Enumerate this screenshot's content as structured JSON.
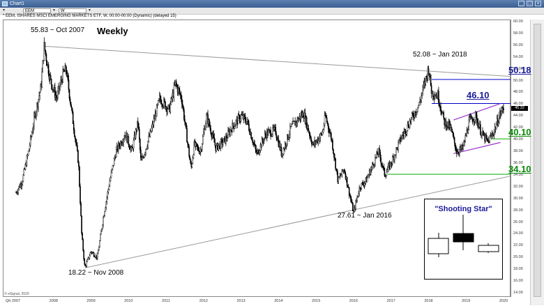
{
  "window": {
    "title": "Chart1",
    "buttons": {
      "minimize": "_",
      "maximize": "□",
      "close": "×"
    }
  },
  "toolbar": {
    "symbol": "EEM",
    "interval": "W"
  },
  "chart_header": "* EEM, ISHARES MSCI EMERGING MARKETS ETF, W, 00:00-00:00 (Dynamic) (delayed 15)",
  "timeframe_label": "Weekly",
  "price_tag": "45.32",
  "annotations": {
    "high_2007": "55.83 ~ Oct 2007",
    "low_2008": "18.22 ~ Nov 2008",
    "low_2016": "27.61 ~ Jan 2016",
    "high_2018": "52.08 ~ Jan 2018"
  },
  "levels": {
    "l5018": "50.18",
    "l4610": "46.10",
    "l4010": "40.10",
    "l3410": "34.10"
  },
  "inset": {
    "title": "\"Shooting Star\""
  },
  "footer": "© eSignal, 2020",
  "colors": {
    "blue_level": "#1c1c9a",
    "green_level": "#0a8a0a",
    "resistance_line": "#0000cc",
    "support_line": "#00aa00",
    "channel": "#9933cc",
    "trendline": "#999999",
    "candles": "#000000"
  },
  "chart_data": {
    "type": "candlestick",
    "title": "Weekly",
    "xlabel": "",
    "ylabel": "",
    "ylim": [
      14,
      60
    ],
    "y_ticks": [
      "60.00",
      "58.00",
      "56.00",
      "54.00",
      "52.00",
      "50.00",
      "48.00",
      "46.00",
      "44.00",
      "42.00",
      "40.00",
      "38.00",
      "36.00",
      "34.00",
      "32.00",
      "30.00",
      "28.00",
      "26.00",
      "24.00",
      "22.00",
      "20.00",
      "18.00",
      "16.00",
      "14.00"
    ],
    "x_ticks": [
      "2007",
      "2008",
      "2009",
      "2010",
      "2011",
      "2012",
      "2013",
      "2014",
      "2015",
      "2016",
      "2017",
      "2018",
      "2019",
      "2020"
    ],
    "x_start_label": "Qtr",
    "x_range": [
      "2007-01",
      "2020-02"
    ],
    "price_path": [
      [
        "2007-01",
        31.0
      ],
      [
        "2007-03",
        33.0
      ],
      [
        "2007-05",
        38.0
      ],
      [
        "2007-07",
        44.0
      ],
      [
        "2007-09",
        49.0
      ],
      [
        "2007-10",
        55.83
      ],
      [
        "2007-12",
        50.0
      ],
      [
        "2008-02",
        47.0
      ],
      [
        "2008-04",
        51.0
      ],
      [
        "2008-05",
        52.0
      ],
      [
        "2008-07",
        44.0
      ],
      [
        "2008-09",
        36.0
      ],
      [
        "2008-10",
        24.0
      ],
      [
        "2008-11",
        18.22
      ],
      [
        "2009-01",
        21.0
      ],
      [
        "2009-03",
        20.0
      ],
      [
        "2009-05",
        27.0
      ],
      [
        "2009-07",
        33.0
      ],
      [
        "2009-09",
        38.0
      ],
      [
        "2009-12",
        41.0
      ],
      [
        "2010-02",
        38.0
      ],
      [
        "2010-04",
        43.0
      ],
      [
        "2010-05",
        36.0
      ],
      [
        "2010-08",
        41.0
      ],
      [
        "2010-11",
        47.0
      ],
      [
        "2011-02",
        45.0
      ],
      [
        "2011-04",
        49.5
      ],
      [
        "2011-06",
        47.0
      ],
      [
        "2011-09",
        35.0
      ],
      [
        "2011-10",
        39.0
      ],
      [
        "2011-12",
        38.0
      ],
      [
        "2012-02",
        44.0
      ],
      [
        "2012-05",
        38.5
      ],
      [
        "2012-08",
        40.0
      ],
      [
        "2012-10",
        42.0
      ],
      [
        "2013-01",
        44.0
      ],
      [
        "2013-03",
        43.0
      ],
      [
        "2013-06",
        37.5
      ],
      [
        "2013-09",
        41.0
      ],
      [
        "2013-12",
        41.5
      ],
      [
        "2014-02",
        37.5
      ],
      [
        "2014-05",
        42.0
      ],
      [
        "2014-09",
        44.5
      ],
      [
        "2014-12",
        39.0
      ],
      [
        "2015-03",
        41.0
      ],
      [
        "2015-04",
        44.0
      ],
      [
        "2015-06",
        40.0
      ],
      [
        "2015-08",
        33.0
      ],
      [
        "2015-10",
        35.0
      ],
      [
        "2016-01",
        27.61
      ],
      [
        "2016-03",
        32.0
      ],
      [
        "2016-05",
        33.0
      ],
      [
        "2016-09",
        38.0
      ],
      [
        "2016-11",
        34.0
      ],
      [
        "2017-01",
        36.0
      ],
      [
        "2017-04",
        40.0
      ],
      [
        "2017-07",
        43.0
      ],
      [
        "2017-10",
        46.0
      ],
      [
        "2018-01",
        52.08
      ],
      [
        "2018-02",
        48.0
      ],
      [
        "2018-04",
        47.5
      ],
      [
        "2018-06",
        43.0
      ],
      [
        "2018-08",
        42.0
      ],
      [
        "2018-10",
        38.0
      ],
      [
        "2018-12",
        38.5
      ],
      [
        "2019-02",
        43.0
      ],
      [
        "2019-04",
        44.0
      ],
      [
        "2019-06",
        41.0
      ],
      [
        "2019-08",
        39.5
      ],
      [
        "2019-10",
        41.5
      ],
      [
        "2019-12",
        44.5
      ],
      [
        "2020-01",
        45.32
      ]
    ],
    "trendlines": [
      {
        "name": "upper",
        "from": [
          "2007-10",
          55.83
        ],
        "to": [
          "2020-02",
          50.7
        ]
      },
      {
        "name": "lower",
        "from": [
          "2008-11",
          18.22
        ],
        "to": [
          "2020-02",
          33.8
        ]
      }
    ],
    "horizontal_levels": [
      {
        "value": 50.18,
        "from": "2018-02",
        "color": "#0000cc"
      },
      {
        "value": 46.1,
        "from": "2018-02",
        "color": "#0000cc"
      },
      {
        "value": 40.1,
        "from": "2019-09",
        "color": "#00aa00"
      },
      {
        "value": 34.1,
        "from": "2016-12",
        "color": "#00aa00"
      }
    ],
    "channel": [
      {
        "from": [
          "2018-09",
          43.3
        ],
        "to": [
          "2019-12",
          46.1
        ]
      },
      {
        "from": [
          "2018-09",
          37.6
        ],
        "to": [
          "2019-12",
          39.5
        ]
      }
    ]
  }
}
